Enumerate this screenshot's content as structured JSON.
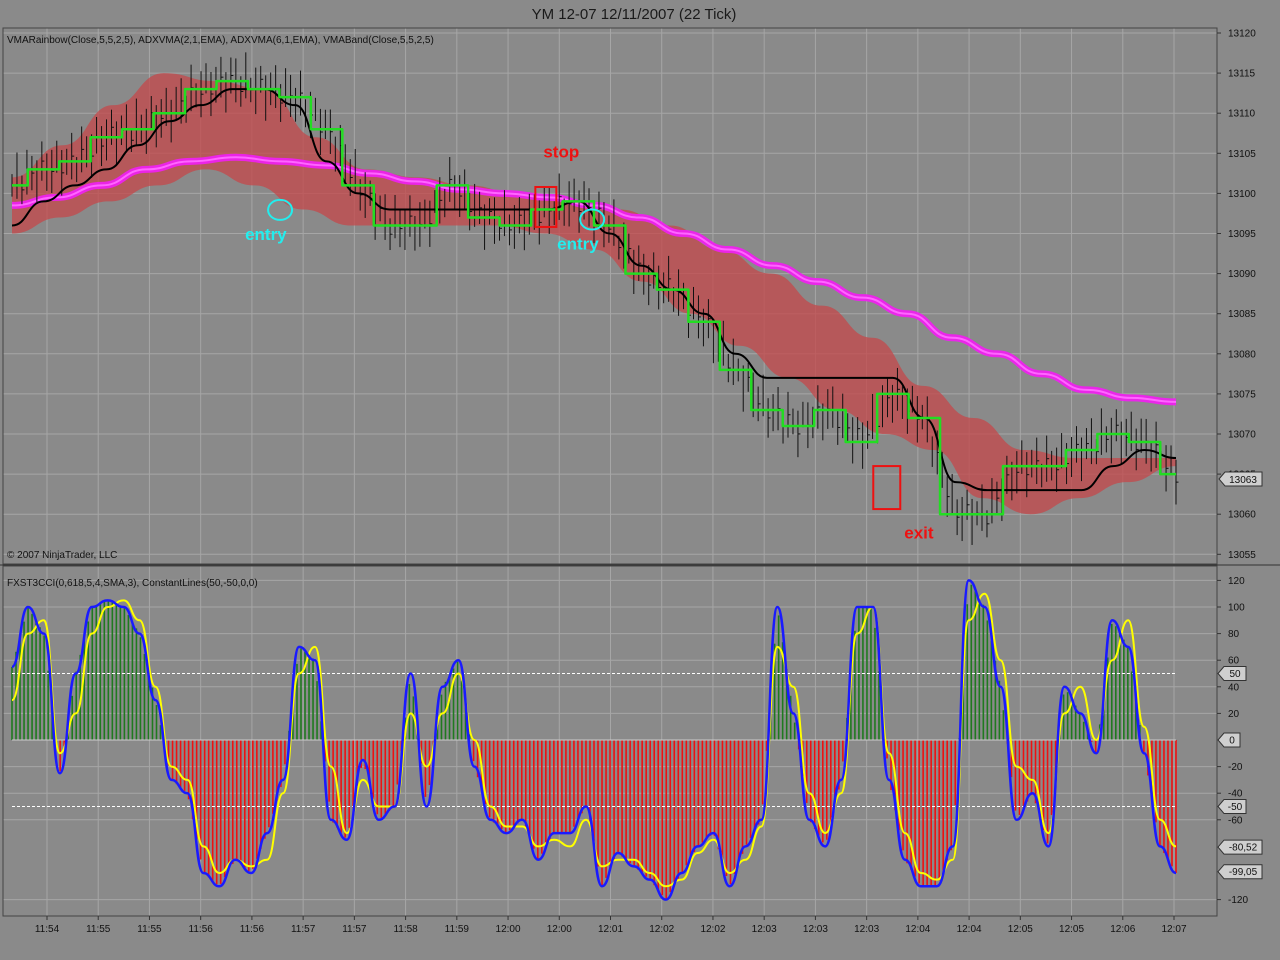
{
  "title": "YM 12-07  12/11/2007  (22 Tick)",
  "colors": {
    "background": "#8a8a8a",
    "grid": "#a6a6a6",
    "fast_ma": "#22dd22",
    "slow_ma": "#000000",
    "long_ma": "#ee22ee",
    "band_fill": "#c4474a",
    "osc_line": "#1a1aff",
    "osc_signal": "#ffff00",
    "hist_pos": "#1f7a1f",
    "hist_neg": "#ee1111",
    "annotation_stop": "#ee1111",
    "annotation_entry": "#22eeee"
  },
  "price_panel": {
    "indicators_label": "VMARainbow(Close,5,5,2,5), ADXVMA(2,1,EMA), ADXVMA(6,1,EMA), VMABand(Close,5,5,2,5)",
    "copyright": "© 2007 NinjaTrader, LLC",
    "last_price_label": "13063"
  },
  "osc_panel": {
    "indicators_label": "FXST3CCI(0,618,5,4,SMA,3), ConstantLines(50,-50,0,0)",
    "value_labels": [
      "50",
      "0",
      "-50",
      "-80,52",
      "-99,05"
    ]
  },
  "annotations": [
    {
      "text": "stop",
      "kind": "stop",
      "time": 11.996,
      "price": 13104.5
    },
    {
      "text": "entry",
      "kind": "entry",
      "time": 11.945,
      "price": 13094.2
    },
    {
      "text": "entry",
      "kind": "entry",
      "time": 12.005,
      "price": 13093.0
    },
    {
      "text": "exit",
      "kind": "exit",
      "time": 12.08,
      "price": 13060.2
    }
  ],
  "chart_data": [
    {
      "type": "line",
      "title": "YM 12-07  12/11/2007  (22 Tick)",
      "xlabel": "",
      "ylabel": "",
      "ylim": [
        13053,
        13121
      ],
      "y_ticks": [
        13055,
        13060,
        13065,
        13070,
        13075,
        13080,
        13085,
        13090,
        13095,
        13100,
        13105,
        13110,
        13115,
        13120
      ],
      "x_tick_labels": [
        "11:54",
        "11:55",
        "11:55",
        "11:56",
        "11:56",
        "11:57",
        "11:57",
        "11:58",
        "11:59",
        "12:00",
        "12:00",
        "12:01",
        "12:02",
        "12:02",
        "12:03",
        "12:03",
        "12:03",
        "12:04",
        "12:04",
        "12:05",
        "12:05",
        "12:06",
        "12:07"
      ],
      "grid": true,
      "series": [
        {
          "name": "ADXVMA(2,1,EMA)",
          "color": "#22dd22",
          "values": [
            13101,
            13103,
            13104,
            13107,
            13108,
            13110,
            13113,
            13114,
            13113,
            13112,
            13108,
            13101,
            13096,
            13096,
            13101,
            13097,
            13096,
            13098,
            13099,
            13096,
            13090,
            13088,
            13084,
            13078,
            13073,
            13071,
            13073,
            13069,
            13075,
            13072,
            13060,
            13060,
            13066,
            13066,
            13068,
            13070,
            13069,
            13065
          ]
        },
        {
          "name": "ADXVMA(6,1,EMA)",
          "color": "#000000",
          "values": [
            13096,
            13099,
            13101,
            13103,
            13106,
            13109,
            13111,
            13113,
            13113,
            13111,
            13104,
            13100,
            13098,
            13098,
            13098,
            13098,
            13098,
            13098,
            13099,
            13095,
            13091,
            13088,
            13085,
            13080,
            13077,
            13077,
            13077,
            13077,
            13077,
            13072,
            13064,
            13063,
            13063,
            13063,
            13063,
            13066,
            13068,
            13067
          ]
        },
        {
          "name": "VMARainbow(Close,5,5,2,5)",
          "color": "#ee22ee",
          "values": [
            13098.5,
            13099.5,
            13101,
            13103,
            13104,
            13104.5,
            13104,
            13103.5,
            13102.5,
            13101.5,
            13100.5,
            13100,
            13099.5,
            13098.5,
            13097,
            13095,
            13093,
            13091,
            13089,
            13087,
            13085,
            13082,
            13080,
            13077.5,
            13075.5,
            13074.5,
            13074
          ]
        },
        {
          "name": "VMABand upper",
          "color": "#c4474a",
          "values": [
            13102,
            13106,
            13111,
            13115,
            13114,
            13113,
            13107,
            13103,
            13102,
            13101,
            13100,
            13099,
            13098,
            13096,
            13093,
            13090,
            13086,
            13082,
            13076,
            13072,
            13068,
            13067,
            13067,
            13067
          ]
        },
        {
          "name": "VMABand lower",
          "color": "#c4474a",
          "values": [
            13095,
            13097,
            13099,
            13101,
            13103,
            13101,
            13098,
            13096,
            13096,
            13096,
            13096,
            13095,
            13093,
            13089,
            13085,
            13081,
            13077,
            13073,
            13070,
            13068,
            13062,
            13060,
            13062,
            13064,
            13066
          ]
        }
      ]
    },
    {
      "type": "bar",
      "title": "",
      "xlabel": "",
      "ylabel": "",
      "ylim": [
        -130,
        125
      ],
      "y_ticks": [
        120,
        100,
        80,
        60,
        40,
        20,
        -20,
        -40,
        -60,
        -120
      ],
      "constant_lines": [
        50,
        -50,
        0
      ],
      "grid": true,
      "series": [
        {
          "name": "FXST3CCI",
          "color": "#1a1aff",
          "values": [
            55,
            100,
            80,
            -25,
            50,
            100,
            105,
            100,
            80,
            30,
            -30,
            -40,
            -100,
            -110,
            -90,
            -100,
            -70,
            -30,
            70,
            60,
            -60,
            -75,
            -15,
            -60,
            -50,
            50,
            -50,
            40,
            60,
            -20,
            -60,
            -70,
            -60,
            -90,
            -70,
            -70,
            -50,
            -110,
            -85,
            -95,
            -105,
            -120,
            -100,
            -80,
            -70,
            -110,
            -80,
            -60,
            100,
            20,
            -60,
            -80,
            -30,
            100,
            100,
            -30,
            -90,
            -110,
            -110,
            -80,
            120,
            100,
            40,
            -60,
            -40,
            -80,
            40,
            20,
            -10,
            90,
            70,
            -10,
            -80,
            -100
          ]
        },
        {
          "name": "Signal",
          "color": "#ffff00",
          "values": [
            30,
            80,
            90,
            -10,
            20,
            80,
            100,
            105,
            90,
            40,
            -20,
            -30,
            -80,
            -100,
            -90,
            -95,
            -90,
            -40,
            50,
            70,
            -20,
            -70,
            -30,
            -50,
            -50,
            20,
            -20,
            20,
            50,
            0,
            -50,
            -65,
            -65,
            -80,
            -75,
            -80,
            -60,
            -95,
            -90,
            -90,
            -100,
            -110,
            -105,
            -85,
            -75,
            -100,
            -90,
            -65,
            70,
            40,
            -40,
            -70,
            -40,
            80,
            100,
            -10,
            -70,
            -100,
            -105,
            -90,
            90,
            110,
            60,
            -20,
            -30,
            -70,
            20,
            40,
            0,
            60,
            90,
            10,
            -60,
            -80
          ]
        }
      ]
    }
  ]
}
